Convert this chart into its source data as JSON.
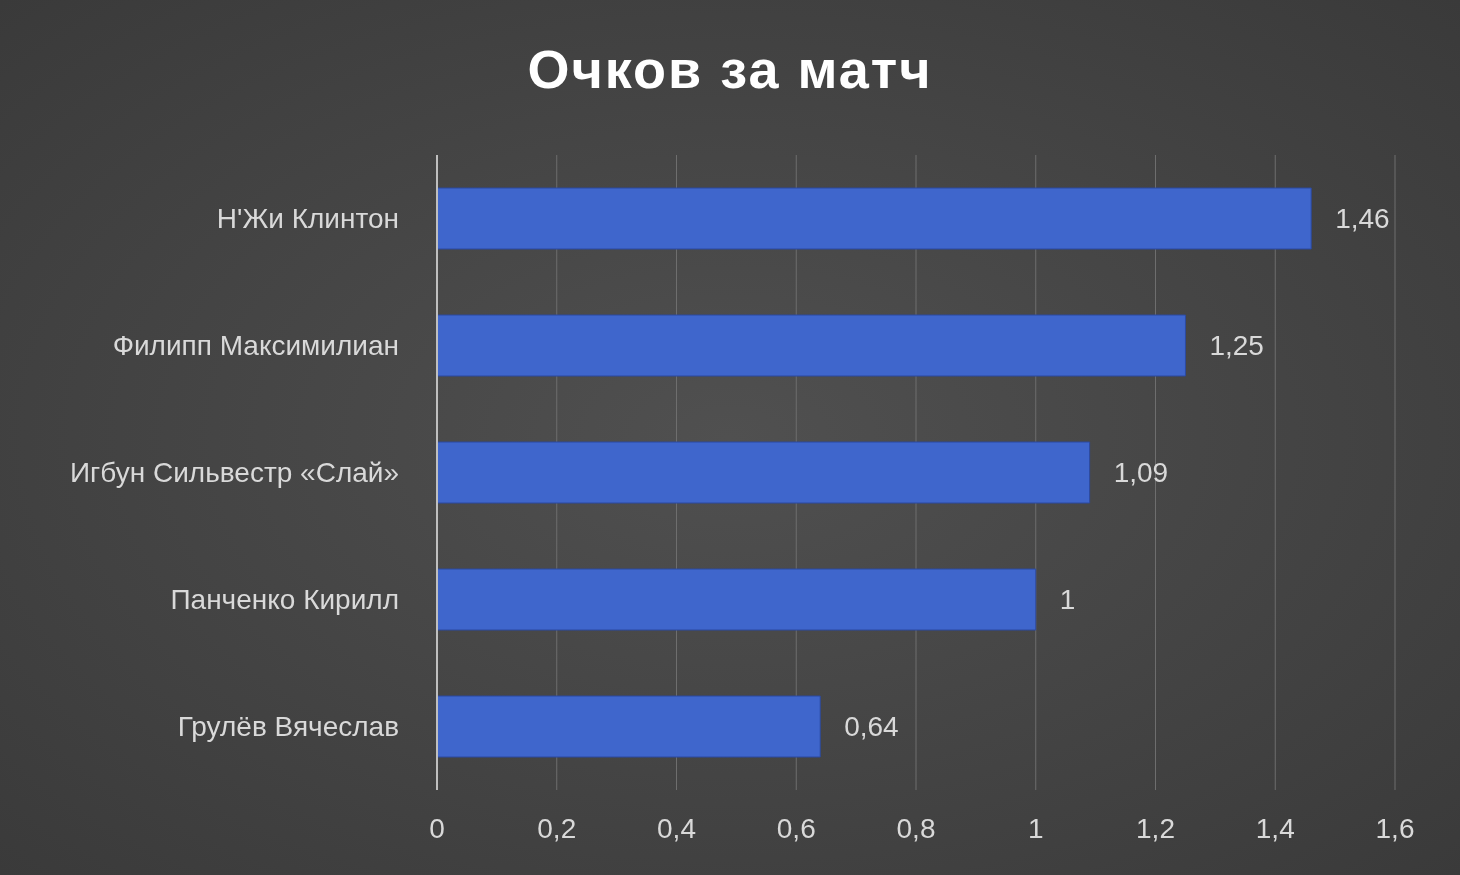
{
  "chart_data": {
    "type": "bar",
    "orientation": "horizontal",
    "title": "Очков за матч",
    "categories": [
      "Н'Жи Клинтон",
      "Филипп Максимилиан",
      "Игбун Сильвестр «Слай»",
      "Панченко Кирилл",
      "Грулёв Вячеслав"
    ],
    "values": [
      1.46,
      1.25,
      1.09,
      1,
      0.64
    ],
    "value_labels": [
      "1,46",
      "1,25",
      "1,09",
      "1",
      "0,64"
    ],
    "color": "#3f66cc",
    "xlim": [
      0,
      1.6
    ],
    "xticks": [
      0,
      {
        "value": 0.2,
        "label": "0,2"
      },
      {
        "value": 0.4,
        "label": "0,4"
      },
      {
        "value": 0.6,
        "label": "0,6"
      },
      {
        "value": 0.8,
        "label": "0,8"
      },
      1,
      {
        "value": 1.2,
        "label": "1,2"
      },
      {
        "value": 1.4,
        "label": "1,4"
      },
      {
        "value": 1.6,
        "label": "1,6"
      }
    ],
    "grid": "x"
  }
}
